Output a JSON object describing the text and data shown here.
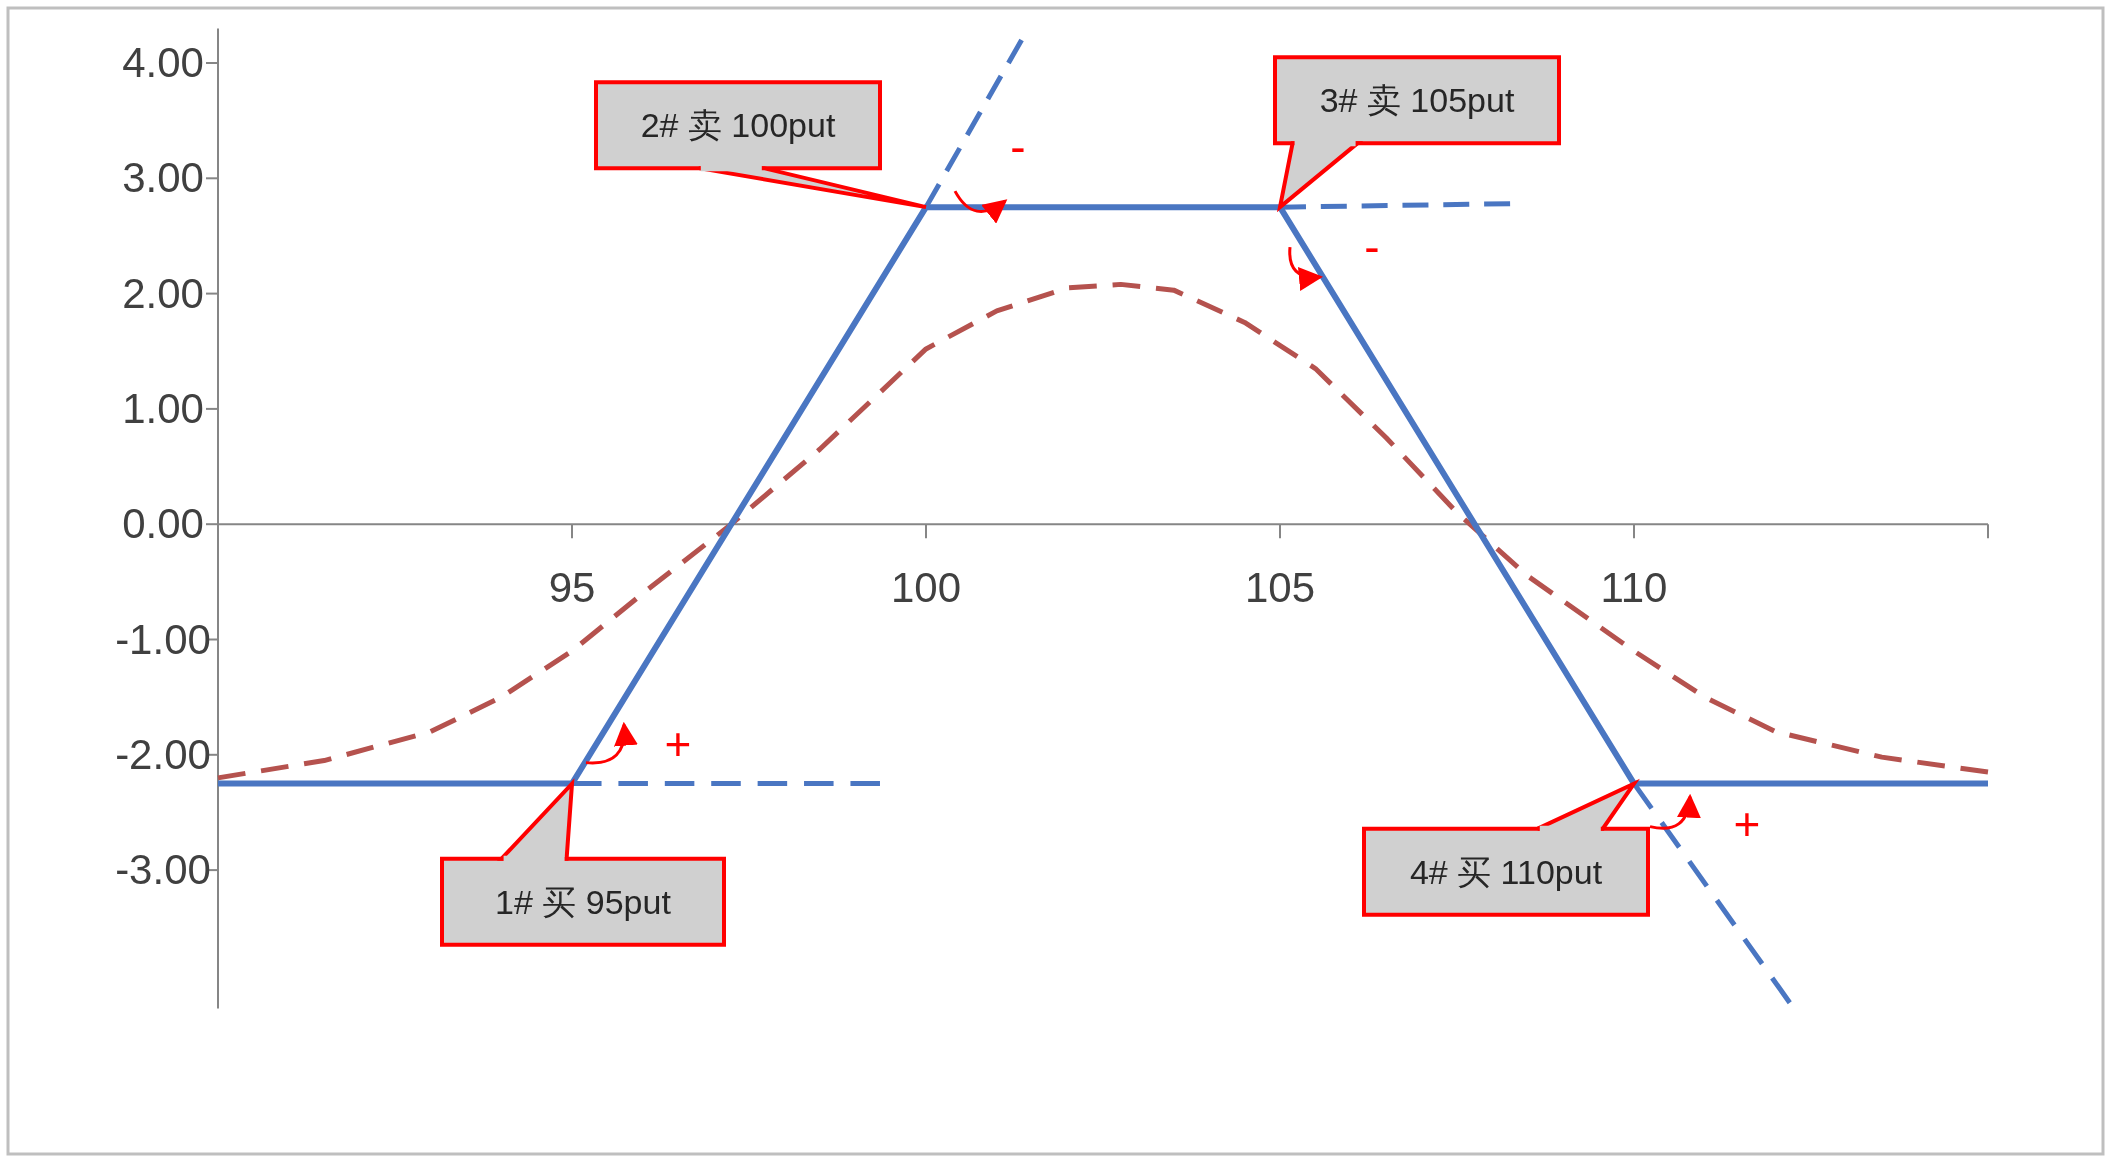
{
  "chart_data": {
    "type": "line",
    "xlim": [
      90,
      115
    ],
    "ylim": [
      -4.2,
      4.3
    ],
    "xticks": [
      95,
      100,
      105,
      110,
      {
        "value": 115,
        "label": null
      }
    ],
    "yticks": [
      {
        "value": 4,
        "label": "4.00"
      },
      {
        "value": 3,
        "label": "3.00"
      },
      {
        "value": 2,
        "label": "2.00"
      },
      {
        "value": 1,
        "label": "1.00"
      },
      {
        "value": 0,
        "label": "0.00"
      },
      {
        "value": -1,
        "label": "-1.00"
      },
      {
        "value": -2,
        "label": "-2.00"
      },
      {
        "value": -3,
        "label": "-3.00"
      }
    ],
    "grid": false,
    "marker": "none",
    "series": [
      {
        "color": "#4a76c2",
        "line_style": "solid",
        "x": [
          90,
          95,
          100,
          105,
          110,
          115
        ],
        "values": [
          -2.25,
          -2.25,
          2.75,
          2.75,
          -2.25,
          -2.25
        ]
      },
      {
        "color": "#b5524e",
        "line_style": "dashed",
        "x": [
          90,
          91.5,
          93,
          94,
          95,
          96,
          97.25,
          98.5,
          100,
          101,
          102,
          102.75,
          103.5,
          104.5,
          105.5,
          106.5,
          107.5,
          108.5,
          110,
          111,
          112,
          113.5,
          115
        ],
        "values": [
          -2.2,
          -2.05,
          -1.8,
          -1.5,
          -1.1,
          -0.6,
          0,
          0.65,
          1.52,
          1.85,
          2.05,
          2.08,
          2.03,
          1.75,
          1.35,
          0.75,
          0.1,
          -0.45,
          -1.1,
          -1.5,
          -1.8,
          -2.02,
          -2.15
        ]
      },
      {
        "color": "#4a76c2",
        "line_style": "dashed",
        "x": [
          95,
          99.35
        ],
        "values": [
          -2.25,
          -2.25
        ]
      },
      {
        "color": "#4a76c2",
        "line_style": "dashed",
        "x": [
          100,
          101.35
        ],
        "values": [
          2.75,
          4.2
        ]
      },
      {
        "color": "#4a76c2",
        "line_style": "dashed",
        "x": [
          105,
          108.25
        ],
        "values": [
          2.75,
          2.78
        ]
      },
      {
        "color": "#4a76c2",
        "line_style": "dashed",
        "x": [
          110,
          112.2
        ],
        "values": [
          -2.25,
          -4.15
        ]
      }
    ],
    "annotations": [
      {
        "text": "1#  买 95put",
        "x": 95,
        "y": -2.25
      },
      {
        "text": "2#  卖 100put",
        "x": 100,
        "y": 2.75
      },
      {
        "text": "3#  卖 105put",
        "x": 105,
        "y": 2.75
      },
      {
        "text": "4#  买 110put",
        "x": 110,
        "y": -2.25
      },
      "+",
      "-",
      "-",
      "+"
    ]
  }
}
